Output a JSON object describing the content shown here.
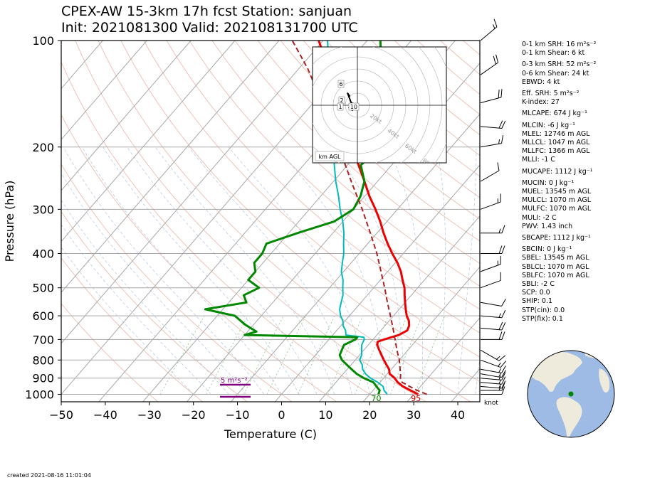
{
  "title": {
    "line1": "CPEX-AW 15-3km  17h fcst  Station: sanjuan",
    "line2": "Init: 2021081300  Valid: 202108131700 UTC"
  },
  "chart_data": {
    "type": "line",
    "subtype": "skew-T log-p sounding",
    "xlabel": "Temperature (C)",
    "ylabel": "Pressure (hPa)",
    "xlim": [
      -50,
      45
    ],
    "ylim": [
      1050,
      100
    ],
    "y_scale": "log",
    "x_ticks": [
      -50,
      -40,
      -30,
      -20,
      -10,
      0,
      10,
      20,
      30,
      40
    ],
    "y_ticks": [
      100,
      200,
      300,
      400,
      500,
      600,
      700,
      800,
      900,
      1000
    ],
    "grid": true,
    "series": [
      {
        "key": "temperature",
        "color": "#ee0000",
        "points": [
          [
            1000,
            31
          ],
          [
            975,
            28.5
          ],
          [
            950,
            26
          ],
          [
            925,
            24
          ],
          [
            900,
            22.5
          ],
          [
            875,
            20.5
          ],
          [
            850,
            19.5
          ],
          [
            825,
            18
          ],
          [
            800,
            16.5
          ],
          [
            775,
            15
          ],
          [
            750,
            13.5
          ],
          [
            725,
            12
          ],
          [
            710,
            11.5
          ],
          [
            700,
            12.5
          ],
          [
            680,
            15
          ],
          [
            660,
            16
          ],
          [
            640,
            15.5
          ],
          [
            620,
            14.5
          ],
          [
            600,
            13
          ],
          [
            575,
            11.5
          ],
          [
            550,
            10
          ],
          [
            525,
            8.5
          ],
          [
            500,
            7
          ],
          [
            475,
            5
          ],
          [
            450,
            3
          ],
          [
            425,
            0.5
          ],
          [
            400,
            -2.5
          ],
          [
            375,
            -5.5
          ],
          [
            350,
            -8.5
          ],
          [
            325,
            -11.5
          ],
          [
            300,
            -15
          ],
          [
            275,
            -19
          ],
          [
            250,
            -23
          ],
          [
            225,
            -27.5
          ],
          [
            200,
            -32.5
          ],
          [
            175,
            -38
          ],
          [
            150,
            -44
          ],
          [
            140,
            -47
          ],
          [
            125,
            -52
          ],
          [
            110,
            -57
          ],
          [
            100,
            -61
          ]
        ]
      },
      {
        "key": "virtual_temperature",
        "color": "#00bbbb",
        "points": [
          [
            1000,
            24
          ],
          [
            975,
            22.5
          ],
          [
            950,
            21.5
          ],
          [
            925,
            19.5
          ],
          [
            900,
            17
          ],
          [
            875,
            15
          ],
          [
            850,
            13.5
          ],
          [
            825,
            12.5
          ],
          [
            800,
            11
          ],
          [
            775,
            10.5
          ],
          [
            750,
            9.5
          ],
          [
            725,
            8.5
          ],
          [
            700,
            8
          ],
          [
            690,
            7.5
          ],
          [
            680,
            3
          ],
          [
            660,
            2
          ],
          [
            640,
            0.5
          ],
          [
            620,
            -0.5
          ],
          [
            600,
            -2
          ],
          [
            575,
            -3.5
          ],
          [
            550,
            -4.5
          ],
          [
            525,
            -5.5
          ],
          [
            500,
            -7
          ],
          [
            475,
            -8.5
          ],
          [
            450,
            -10.5
          ],
          [
            425,
            -12
          ],
          [
            400,
            -13.5
          ],
          [
            375,
            -15.5
          ],
          [
            350,
            -17.5
          ],
          [
            325,
            -20
          ],
          [
            300,
            -23
          ],
          [
            275,
            -26
          ],
          [
            250,
            -29.5
          ],
          [
            225,
            -33
          ],
          [
            200,
            -36.5
          ],
          [
            175,
            -41
          ],
          [
            150,
            -45.5
          ],
          [
            140,
            -48
          ],
          [
            125,
            -52
          ],
          [
            110,
            -56
          ],
          [
            100,
            -59
          ]
        ]
      },
      {
        "key": "dewpoint",
        "color": "#008800",
        "points": [
          [
            1000,
            22
          ],
          [
            975,
            21.5
          ],
          [
            950,
            20
          ],
          [
            925,
            18.5
          ],
          [
            900,
            15.5
          ],
          [
            875,
            13
          ],
          [
            850,
            11
          ],
          [
            825,
            9
          ],
          [
            800,
            7
          ],
          [
            775,
            5.5
          ],
          [
            750,
            5
          ],
          [
            725,
            4.5
          ],
          [
            700,
            6
          ],
          [
            690,
            6
          ],
          [
            680,
            -20
          ],
          [
            665,
            -18
          ],
          [
            650,
            -20
          ],
          [
            635,
            -22
          ],
          [
            600,
            -26
          ],
          [
            575,
            -34
          ],
          [
            550,
            -26
          ],
          [
            525,
            -28
          ],
          [
            500,
            -26
          ],
          [
            475,
            -30
          ],
          [
            450,
            -30
          ],
          [
            425,
            -32
          ],
          [
            400,
            -32
          ],
          [
            375,
            -33
          ],
          [
            350,
            -28
          ],
          [
            325,
            -22
          ],
          [
            300,
            -20
          ],
          [
            275,
            -21
          ],
          [
            250,
            -23
          ],
          [
            225,
            -27
          ],
          [
            200,
            -26
          ],
          [
            175,
            -29
          ],
          [
            150,
            -33
          ],
          [
            140,
            -35
          ],
          [
            125,
            -40
          ],
          [
            110,
            -44
          ],
          [
            100,
            -47
          ]
        ]
      },
      {
        "key": "parcel",
        "color": "#aa2222",
        "dashed": true,
        "points": [
          [
            1000,
            33
          ],
          [
            975,
            30
          ],
          [
            950,
            27.5
          ],
          [
            925,
            25
          ],
          [
            900,
            23.8
          ],
          [
            875,
            23
          ],
          [
            850,
            22
          ],
          [
            800,
            20
          ],
          [
            750,
            17.5
          ],
          [
            700,
            15
          ],
          [
            650,
            12.3
          ],
          [
            600,
            9.3
          ],
          [
            550,
            6
          ],
          [
            500,
            2.5
          ],
          [
            450,
            -1.5
          ],
          [
            400,
            -6
          ],
          [
            350,
            -11.5
          ],
          [
            300,
            -18
          ],
          [
            250,
            -26
          ],
          [
            200,
            -35.5
          ],
          [
            150,
            -48
          ],
          [
            120,
            -58
          ],
          [
            100,
            -67
          ]
        ]
      }
    ],
    "surface_labels": [
      {
        "text": "70",
        "color": "#008800",
        "x": 21.5
      },
      {
        "text": "95",
        "color": "#cc0000",
        "x": 30.5
      }
    ],
    "srh_legend": {
      "label": "5 m²s⁻²",
      "color": "#800080"
    },
    "wind_units_label": "knot",
    "winds": [
      {
        "p": 1000,
        "dir": 90,
        "spd": 10
      },
      {
        "p": 975,
        "dir": 90,
        "spd": 15
      },
      {
        "p": 950,
        "dir": 95,
        "spd": 15
      },
      {
        "p": 925,
        "dir": 95,
        "spd": 15
      },
      {
        "p": 900,
        "dir": 95,
        "spd": 15
      },
      {
        "p": 875,
        "dir": 100,
        "spd": 15
      },
      {
        "p": 850,
        "dir": 100,
        "spd": 15
      },
      {
        "p": 800,
        "dir": 110,
        "spd": 15
      },
      {
        "p": 750,
        "dir": 120,
        "spd": 15
      },
      {
        "p": 700,
        "dir": 90,
        "spd": 20
      },
      {
        "p": 650,
        "dir": 95,
        "spd": 20
      },
      {
        "p": 600,
        "dir": 95,
        "spd": 15
      },
      {
        "p": 550,
        "dir": 100,
        "spd": 10
      },
      {
        "p": 500,
        "dir": 70,
        "spd": 10
      },
      {
        "p": 450,
        "dir": 70,
        "spd": 15
      },
      {
        "p": 400,
        "dir": 90,
        "spd": 20
      },
      {
        "p": 350,
        "dir": 90,
        "spd": 15
      },
      {
        "p": 300,
        "dir": 70,
        "spd": 15
      },
      {
        "p": 250,
        "dir": 60,
        "spd": 10
      },
      {
        "p": 200,
        "dir": 80,
        "spd": 15
      },
      {
        "p": 175,
        "dir": 95,
        "spd": 20
      },
      {
        "p": 150,
        "dir": 75,
        "spd": 20
      },
      {
        "p": 125,
        "dir": 55,
        "spd": 20
      },
      {
        "p": 100,
        "dir": 50,
        "spd": 15
      }
    ],
    "hodograph": {
      "ring_labels": [
        "20kt",
        "40kt",
        "60kt",
        "80kt"
      ],
      "height_labels": [
        "6",
        "2",
        "1",
        "10"
      ],
      "corner_label": "km AGL",
      "points": [
        [
          -3.5,
          -0.8
        ],
        [
          -2.8,
          -1.5
        ],
        [
          -2,
          -2
        ],
        [
          -1.5,
          -1
        ],
        [
          0,
          0
        ],
        [
          -2.5,
          1
        ],
        [
          -4,
          5
        ],
        [
          -3,
          3.5
        ]
      ]
    }
  },
  "params": [
    "0-1 km SRH: 16 m²s⁻²",
    "0-1 km Shear: 6 kt",
    "0-3 km SRH: 52 m²s⁻²",
    "0-6 km Shear: 24 kt",
    "EBWD: 4 kt",
    "Eff. SRH: 5 m²s⁻²",
    "K-index: 27",
    "MLCAPE: 674 J kg⁻¹",
    "MLCIN: -6 J kg⁻¹",
    "MLEL: 12746 m AGL",
    "MLLCL: 1047 m AGL",
    "MLLFC: 1366 m AGL",
    "MLLI: -1 C",
    "MUCAPE: 1112 J kg⁻¹",
    "MUCIN: 0 J kg⁻¹",
    "MUEL: 13545 m AGL",
    "MULCL: 1070 m AGL",
    "MULFC: 1070 m AGL",
    "MULI: -2 C",
    "PWV: 1.43 inch",
    "SBCAPE: 1112 J kg⁻¹",
    "SBCIN: 0 J kg⁻¹",
    "SBEL: 13545 m AGL",
    "SBLCL: 1070 m AGL",
    "SBLFC: 1070 m AGL",
    "SBLI: -2 C",
    "SCP: 0.0",
    "SHIP: 0.1",
    "STP(cin): 0.0",
    "STP(fix): 0.1"
  ],
  "created": "created 2021-08-16 11:01:04"
}
